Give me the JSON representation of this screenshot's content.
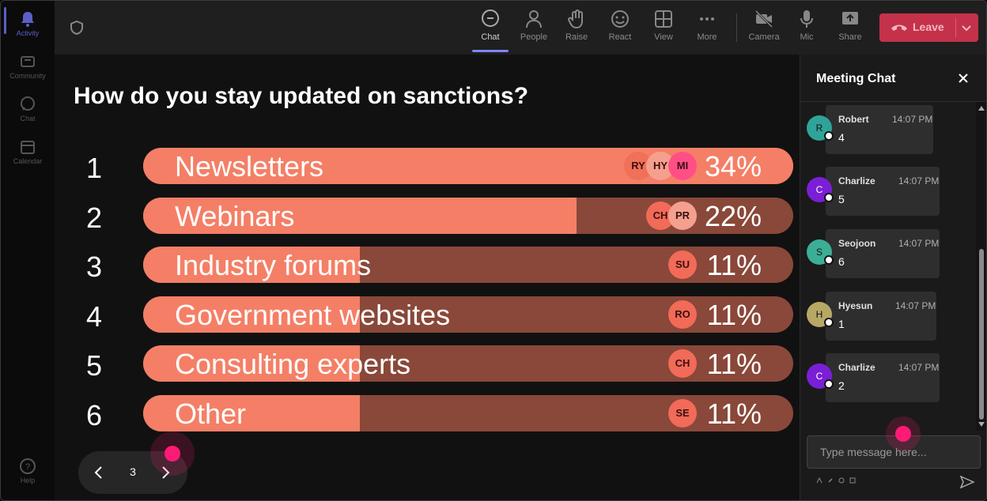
{
  "rail": {
    "items": [
      {
        "label": "Activity",
        "icon": "bell-icon"
      },
      {
        "label": "Community",
        "icon": "community-icon"
      },
      {
        "label": "Chat",
        "icon": "chat-icon"
      },
      {
        "label": "Calendar",
        "icon": "calendar-icon"
      }
    ],
    "help": {
      "label": "Help",
      "icon": "help-icon"
    }
  },
  "toolbar": {
    "buttons": [
      {
        "label": "Chat",
        "icon": "chat-icon"
      },
      {
        "label": "People",
        "icon": "people-icon"
      },
      {
        "label": "Raise",
        "icon": "raise-hand-icon"
      },
      {
        "label": "React",
        "icon": "react-icon"
      },
      {
        "label": "View",
        "icon": "view-icon"
      },
      {
        "label": "More",
        "icon": "more-icon"
      },
      {
        "label": "Camera",
        "icon": "camera-off-icon"
      },
      {
        "label": "Mic",
        "icon": "mic-icon"
      },
      {
        "label": "Share",
        "icon": "share-icon"
      }
    ],
    "leave_label": "Leave"
  },
  "poll": {
    "question": "How do you stay updated on sanctions?",
    "options": [
      {
        "num": "1",
        "label": "Newsletters",
        "percent": "34%",
        "fill_fraction": 1.0,
        "voters": [
          "RY",
          "HY",
          "MI"
        ]
      },
      {
        "num": "2",
        "label": "Webinars",
        "percent": "22%",
        "fill_fraction": 0.667,
        "voters": [
          "CH",
          "PR"
        ]
      },
      {
        "num": "3",
        "label": "Industry forums",
        "percent": "11%",
        "fill_fraction": 0.333,
        "voters": [
          "SU"
        ]
      },
      {
        "num": "4",
        "label": "Government websites",
        "percent": "11%",
        "fill_fraction": 0.333,
        "voters": [
          "RO"
        ]
      },
      {
        "num": "5",
        "label": "Consulting experts",
        "percent": "11%",
        "fill_fraction": 0.333,
        "voters": [
          "CH"
        ]
      },
      {
        "num": "6",
        "label": "Other",
        "percent": "11%",
        "fill_fraction": 0.333,
        "voters": [
          "SE"
        ]
      }
    ],
    "page": "3",
    "colors": {
      "fill": "#f47f66",
      "track": "#894839"
    }
  },
  "chat": {
    "title": "Meeting Chat",
    "messages": [
      {
        "initial": "R",
        "name": "Robert",
        "time": "14:07 PM",
        "text": "4",
        "color": "#2fa39a"
      },
      {
        "initial": "C",
        "name": "Charlize",
        "time": "14:07 PM",
        "text": "5",
        "color": "#7a1fd6"
      },
      {
        "initial": "S",
        "name": "Seojoon",
        "time": "14:07 PM",
        "text": "6",
        "color": "#3cae96"
      },
      {
        "initial": "H",
        "name": "Hyesun",
        "time": "14:07 PM",
        "text": "1",
        "color": "#b7a866"
      },
      {
        "initial": "C",
        "name": "Charlize",
        "time": "14:07 PM",
        "text": "2",
        "color": "#7a1fd6"
      }
    ],
    "input_placeholder": "Type message here..."
  }
}
